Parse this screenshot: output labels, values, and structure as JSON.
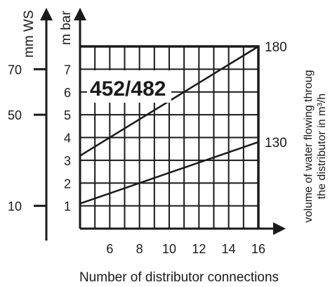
{
  "chart_data": {
    "type": "line",
    "title": "452/482",
    "xlabel": "Number of distributor connections",
    "ylabel": "m bar",
    "secondary_ylabel": "mm WS",
    "right_label": [
      "volume of water flowing throug",
      "the distributor in m³/h"
    ],
    "x_ticks": [
      6,
      8,
      10,
      12,
      14,
      16
    ],
    "y_ticks": [
      1,
      2,
      3,
      4,
      5,
      6,
      7
    ],
    "secondary_y_ticks": [
      {
        "label": "10",
        "mbar": 1
      },
      {
        "label": "50",
        "mbar": 5
      },
      {
        "label": "70",
        "mbar": 7
      }
    ],
    "xlim": [
      4,
      16
    ],
    "ylim": [
      0,
      8
    ],
    "grid": true,
    "series": [
      {
        "end_label": "180",
        "x": [
          4,
          16
        ],
        "y": [
          3.2,
          8.0
        ]
      },
      {
        "end_label": "130",
        "x": [
          4,
          16
        ],
        "y": [
          1.1,
          3.8
        ]
      }
    ]
  }
}
